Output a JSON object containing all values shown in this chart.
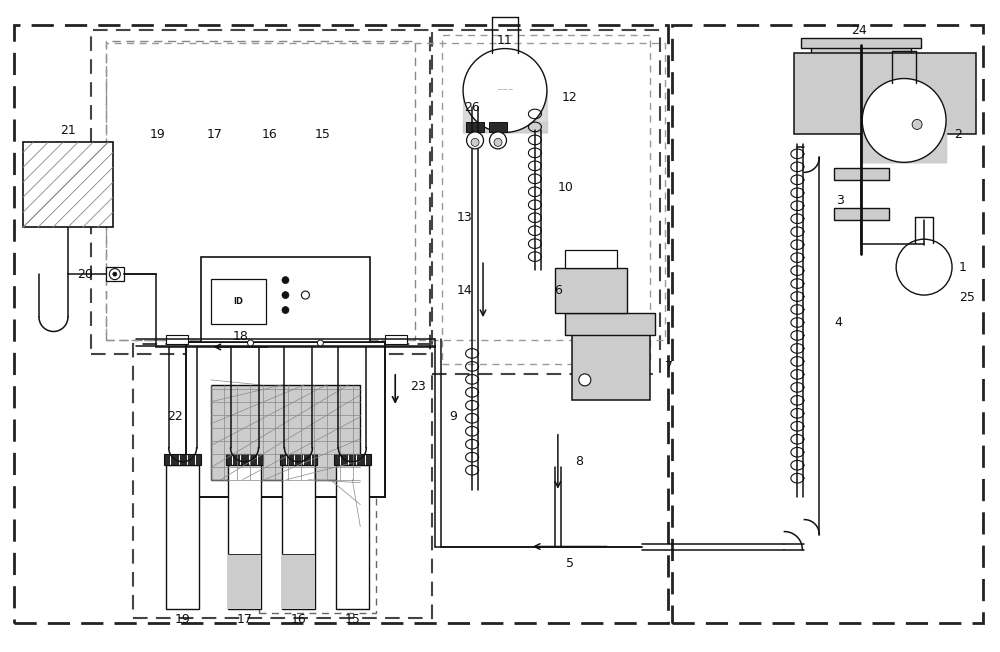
{
  "bg_color": "#ffffff",
  "lc": "#111111",
  "dc": "#444444",
  "gc": "#aaaaaa",
  "lgray": "#cccccc",
  "mgray": "#888888",
  "fig_w": 10.0,
  "fig_h": 6.52,
  "dpi": 100
}
